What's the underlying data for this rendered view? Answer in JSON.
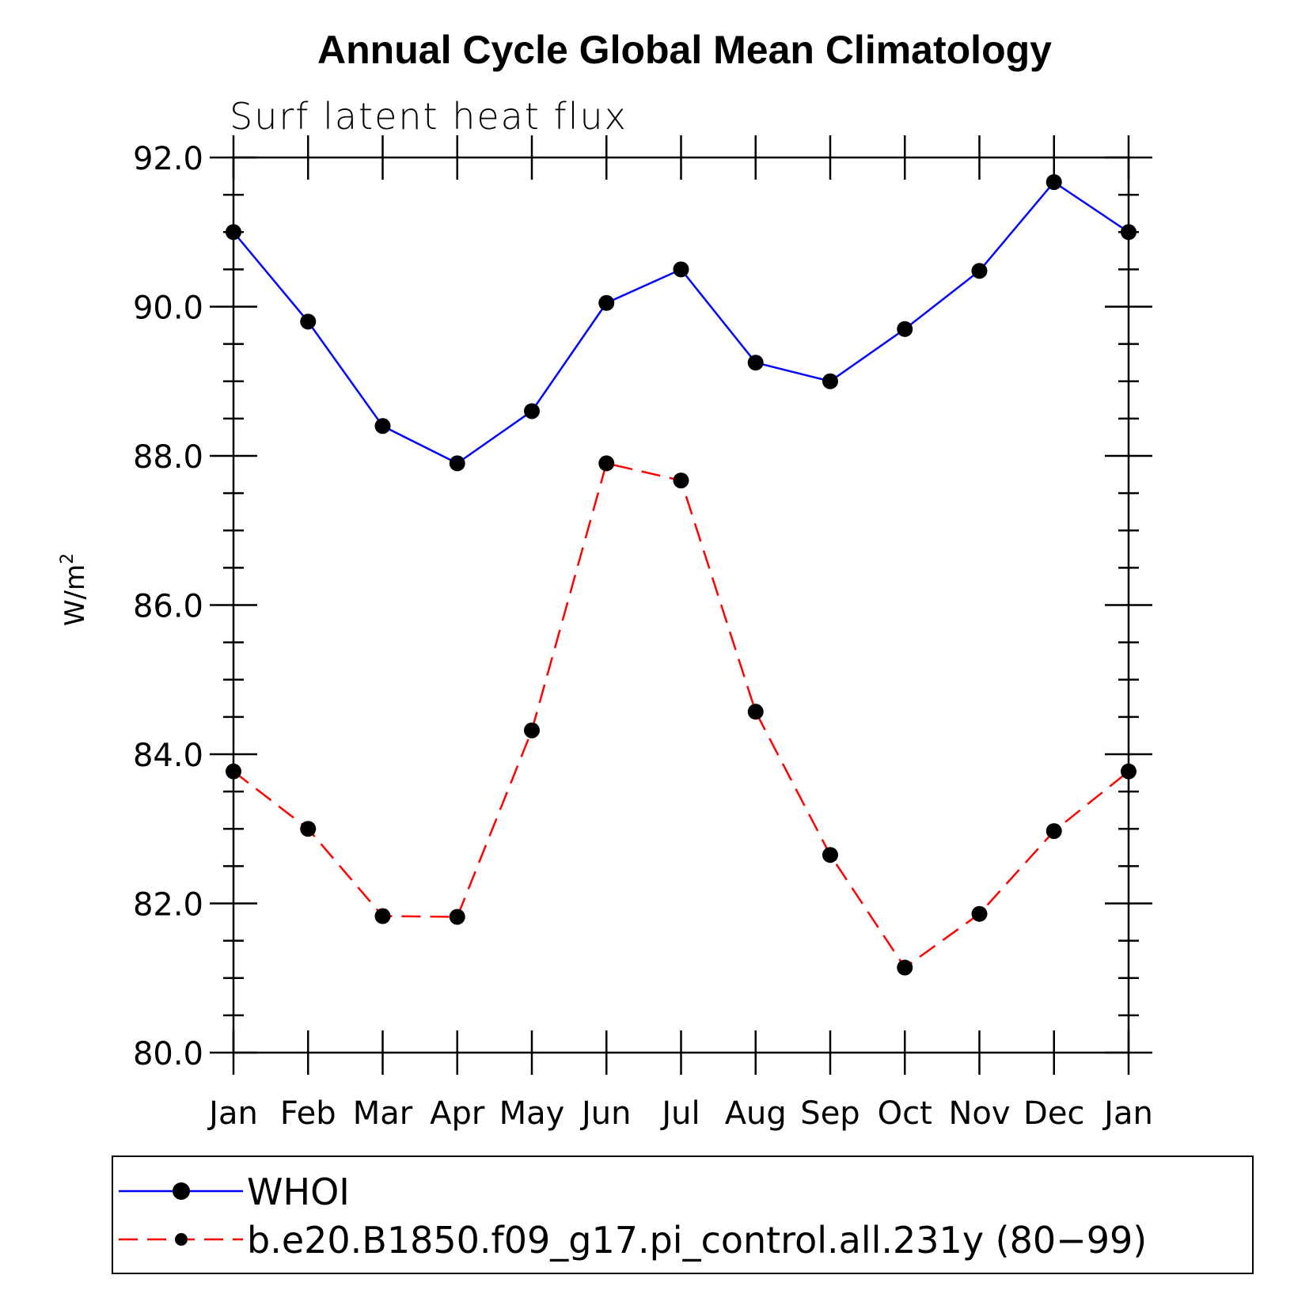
{
  "chart_data": {
    "type": "line",
    "title": "Annual Cycle Global Mean Climatology",
    "subtitle": "Surf latent heat flux",
    "xlabel": "",
    "ylabel": "W/m",
    "ylabel_superscript": "2",
    "categories": [
      "Jan",
      "Feb",
      "Mar",
      "Apr",
      "May",
      "Jun",
      "Jul",
      "Aug",
      "Sep",
      "Oct",
      "Nov",
      "Dec",
      "Jan"
    ],
    "ylim": [
      80.0,
      92.0
    ],
    "yticks": [
      "80.0",
      "82.0",
      "84.0",
      "86.0",
      "88.0",
      "90.0",
      "92.0"
    ],
    "grid": false,
    "legend_position": "bottom",
    "series": [
      {
        "name": "WHOI",
        "color": "#0000ff",
        "dash": "solid",
        "values": [
          91.0,
          89.8,
          88.4,
          87.9,
          88.6,
          90.05,
          90.5,
          89.25,
          89.0,
          89.7,
          90.48,
          91.67,
          91.0
        ]
      },
      {
        "name": "b.e20.B1850.f09_g17.pi_control.all.231y (80−99)",
        "color": "#ff0000",
        "dash": "dashed",
        "values": [
          83.77,
          83.0,
          81.83,
          81.82,
          84.32,
          87.9,
          87.67,
          84.57,
          82.65,
          81.14,
          81.86,
          82.97,
          83.77
        ]
      }
    ],
    "marker_color": "#000000"
  }
}
